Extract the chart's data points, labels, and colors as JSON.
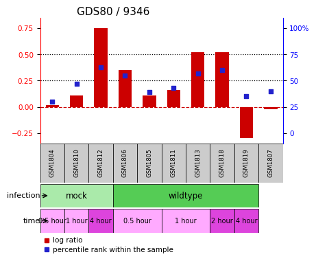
{
  "title": "GDS80 / 9346",
  "samples": [
    "GSM1804",
    "GSM1810",
    "GSM1812",
    "GSM1806",
    "GSM1805",
    "GSM1811",
    "GSM1813",
    "GSM1818",
    "GSM1819",
    "GSM1807"
  ],
  "log_ratio": [
    0.02,
    0.11,
    0.75,
    0.35,
    0.11,
    0.16,
    0.52,
    0.52,
    -0.3,
    -0.02
  ],
  "percentile": [
    30,
    47,
    63,
    55,
    39,
    43,
    57,
    60,
    35,
    40
  ],
  "bar_color": "#cc0000",
  "dot_color": "#2222cc",
  "ylim_left": [
    -0.35,
    0.85
  ],
  "ylim_right_ticks": [
    0,
    25,
    50,
    75,
    100
  ],
  "yticks_left": [
    -0.25,
    0.0,
    0.25,
    0.5,
    0.75
  ],
  "hlines": [
    0.0,
    0.25,
    0.5
  ],
  "hline_styles": [
    "dashed",
    "dotted",
    "dotted"
  ],
  "hline_colors": [
    "#cc0000",
    "#000000",
    "#000000"
  ],
  "infection_groups": [
    {
      "label": "mock",
      "start": 0,
      "end": 3,
      "color": "#aaeaaa"
    },
    {
      "label": "wildtype",
      "start": 3,
      "end": 9,
      "color": "#55cc55"
    }
  ],
  "time_groups": [
    {
      "label": "0.5 hour",
      "start": 0,
      "end": 1,
      "color": "#ffaaff"
    },
    {
      "label": "1 hour",
      "start": 1,
      "end": 2,
      "color": "#ffaaff"
    },
    {
      "label": "4 hour",
      "start": 2,
      "end": 3,
      "color": "#dd44dd"
    },
    {
      "label": "0.5 hour",
      "start": 3,
      "end": 5,
      "color": "#ffaaff"
    },
    {
      "label": "1 hour",
      "start": 5,
      "end": 7,
      "color": "#ffaaff"
    },
    {
      "label": "2 hour",
      "start": 7,
      "end": 8,
      "color": "#dd44dd"
    },
    {
      "label": "4 hour",
      "start": 8,
      "end": 9,
      "color": "#dd44dd"
    }
  ],
  "legend_items": [
    {
      "label": "log ratio",
      "color": "#cc0000",
      "marker": "s"
    },
    {
      "label": "percentile rank within the sample",
      "color": "#2222cc",
      "marker": "s"
    }
  ],
  "infection_label": "infection",
  "time_label": "time",
  "title_fontsize": 11,
  "tick_fontsize": 7.5,
  "bar_fontsize": 7
}
